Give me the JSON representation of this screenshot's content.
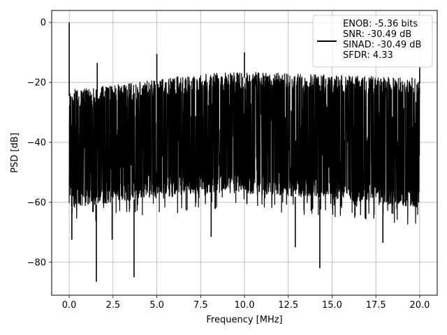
{
  "chart_data": {
    "type": "line",
    "title": "",
    "xlabel": "Frequency [MHz]",
    "ylabel": "PSD [dB]",
    "xlim": [
      -1.0,
      21.0
    ],
    "ylim": [
      -91.0,
      4.0
    ],
    "xticks": [
      0.0,
      2.5,
      5.0,
      7.5,
      10.0,
      12.5,
      15.0,
      17.5,
      20.0
    ],
    "xtick_labels": [
      "0.0",
      "2.5",
      "5.0",
      "7.5",
      "10.0",
      "12.5",
      "15.0",
      "17.5",
      "20.0"
    ],
    "yticks": [
      0,
      -20,
      -40,
      -60,
      -80
    ],
    "ytick_labels": [
      "0",
      "−20",
      "−40",
      "−60",
      "−80"
    ],
    "grid": true,
    "line_color": "#000000",
    "legend": {
      "location": "upper right",
      "entries": [
        "ENOB: -5.36 bits",
        "SNR: -30.49 dB",
        "SINAD: -30.49 dB",
        "SFDR: 4.33"
      ]
    },
    "series": [
      {
        "name": "ENOB: -5.36 bits\nSNR: -30.49 dB\nSINAD: -30.49 dB\nSFDR: 4.33",
        "frequency_range": [
          0.0,
          20.0
        ],
        "spikes": [
          {
            "x": 0.0,
            "y": 0.0
          },
          {
            "x": 1.6,
            "y": -13.5
          },
          {
            "x": 5.0,
            "y": -10.5
          },
          {
            "x": 10.0,
            "y": -10.0
          },
          {
            "x": 20.0,
            "y": -15.0
          }
        ],
        "noise_upper_envelope": [
          {
            "x": 0.0,
            "y": -22.5
          },
          {
            "x": 2.5,
            "y": -21.0
          },
          {
            "x": 5.0,
            "y": -19.0
          },
          {
            "x": 7.5,
            "y": -17.0
          },
          {
            "x": 10.0,
            "y": -16.5
          },
          {
            "x": 12.5,
            "y": -17.0
          },
          {
            "x": 15.0,
            "y": -17.5
          },
          {
            "x": 17.5,
            "y": -18.0
          },
          {
            "x": 20.0,
            "y": -18.5
          }
        ],
        "noise_lower_envelope": [
          {
            "x": 0.0,
            "y": -62.0
          },
          {
            "x": 2.5,
            "y": -60.0
          },
          {
            "x": 5.0,
            "y": -58.0
          },
          {
            "x": 7.5,
            "y": -57.0
          },
          {
            "x": 10.0,
            "y": -57.0
          },
          {
            "x": 12.5,
            "y": -58.0
          },
          {
            "x": 15.0,
            "y": -59.0
          },
          {
            "x": 17.5,
            "y": -60.0
          },
          {
            "x": 20.0,
            "y": -62.0
          }
        ],
        "dips": [
          {
            "x": 0.15,
            "y": -72.5
          },
          {
            "x": 1.55,
            "y": -86.5
          },
          {
            "x": 2.45,
            "y": -72.5
          },
          {
            "x": 3.7,
            "y": -85.0
          },
          {
            "x": 8.1,
            "y": -71.5
          },
          {
            "x": 12.9,
            "y": -75.0
          },
          {
            "x": 14.3,
            "y": -82.0
          },
          {
            "x": 17.9,
            "y": -73.5
          }
        ]
      }
    ]
  }
}
